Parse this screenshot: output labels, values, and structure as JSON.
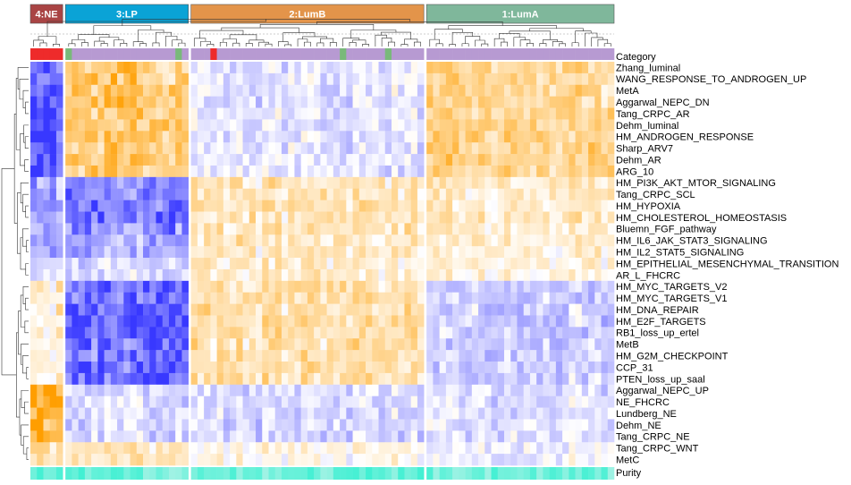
{
  "chart_data": {
    "type": "heatmap",
    "groups": [
      {
        "label": "4:NE",
        "color": "#a94444",
        "n": 5
      },
      {
        "label": "3:LP",
        "color": "#0aa3d6",
        "n": 19
      },
      {
        "label": "2:LumB",
        "color": "#e3944a",
        "n": 36
      },
      {
        "label": "1:LumA",
        "color": "#7fb79b",
        "n": 29
      }
    ],
    "category_label": "Category",
    "purity_label": "Purity",
    "category_colors": {
      "base": "#b79ad2",
      "ne": "#ee2b2b",
      "alt": "#79b97a",
      "gray": "#b0b0b0"
    },
    "purity_colors": {
      "low": "#a0f2e4",
      "high": "#3ef0d2"
    },
    "color_scale": {
      "low": "#3838ff",
      "mid": "#ffffff",
      "high": "#ff9e00"
    },
    "rows": [
      {
        "label": "Zhang_luminal",
        "pattern": [
          -0.9,
          0.6,
          -0.15,
          0.45
        ]
      },
      {
        "label": "WANG_RESPONSE_TO_ANDROGEN_UP",
        "pattern": [
          -0.9,
          0.6,
          -0.15,
          0.45
        ]
      },
      {
        "label": "MetA",
        "pattern": [
          -0.9,
          0.6,
          -0.15,
          0.45
        ]
      },
      {
        "label": "Aggarwal_NEPC_DN",
        "pattern": [
          -0.9,
          0.6,
          -0.15,
          0.45
        ]
      },
      {
        "label": "Tang_CRPC_AR",
        "pattern": [
          -0.9,
          0.6,
          -0.15,
          0.45
        ]
      },
      {
        "label": "Dehm_luminal",
        "pattern": [
          -0.9,
          0.6,
          -0.15,
          0.45
        ]
      },
      {
        "label": "HM_ANDROGEN_RESPONSE",
        "pattern": [
          -0.9,
          0.6,
          -0.15,
          0.45
        ]
      },
      {
        "label": "Sharp_ARV7",
        "pattern": [
          -0.9,
          0.6,
          -0.15,
          0.45
        ]
      },
      {
        "label": "Dehm_AR",
        "pattern": [
          -0.9,
          0.6,
          -0.15,
          0.45
        ]
      },
      {
        "label": "ARG_10",
        "pattern": [
          -0.9,
          0.6,
          -0.15,
          0.45
        ]
      },
      {
        "label": "HM_PI3K_AKT_MTOR_SIGNALING",
        "pattern": [
          -0.5,
          -0.7,
          0.3,
          0.2
        ]
      },
      {
        "label": "Tang_CRPC_SCL",
        "pattern": [
          -0.5,
          -0.7,
          0.3,
          0.2
        ]
      },
      {
        "label": "HM_HYPOXIA",
        "pattern": [
          -0.5,
          -0.7,
          0.3,
          0.2
        ]
      },
      {
        "label": "HM_CHOLESTEROL_HOMEOSTASIS",
        "pattern": [
          -0.5,
          -0.7,
          0.3,
          0.2
        ]
      },
      {
        "label": "Bluemn_FGF_pathway",
        "pattern": [
          -0.5,
          -0.7,
          0.3,
          0.2
        ]
      },
      {
        "label": "HM_IL6_JAK_STAT3_SIGNALING",
        "pattern": [
          -0.4,
          -0.5,
          0.25,
          0.15
        ]
      },
      {
        "label": "HM_IL2_STAT5_SIGNALING",
        "pattern": [
          -0.4,
          -0.5,
          0.25,
          0.15
        ]
      },
      {
        "label": "HM_EPITHELIAL_MESENCHYMAL_TRANSITION",
        "pattern": [
          -0.2,
          -0.2,
          0.2,
          0.1
        ]
      },
      {
        "label": "AR_L_FHCRC",
        "pattern": [
          -0.2,
          -0.2,
          0.2,
          0.1
        ]
      },
      {
        "label": "HM_MYC_TARGETS_V2",
        "pattern": [
          0.2,
          -0.85,
          0.35,
          -0.3
        ]
      },
      {
        "label": "HM_MYC_TARGETS_V1",
        "pattern": [
          0.2,
          -0.85,
          0.35,
          -0.3
        ]
      },
      {
        "label": "HM_DNA_REPAIR",
        "pattern": [
          0.2,
          -0.85,
          0.35,
          -0.3
        ]
      },
      {
        "label": "HM_E2F_TARGETS",
        "pattern": [
          0.2,
          -0.85,
          0.35,
          -0.3
        ]
      },
      {
        "label": "RB1_loss_up_ertel",
        "pattern": [
          0.2,
          -0.85,
          0.35,
          -0.3
        ]
      },
      {
        "label": "MetB",
        "pattern": [
          0.2,
          -0.85,
          0.35,
          -0.3
        ]
      },
      {
        "label": "HM_G2M_CHECKPOINT",
        "pattern": [
          0.2,
          -0.85,
          0.35,
          -0.3
        ]
      },
      {
        "label": "CCP_31",
        "pattern": [
          0.2,
          -0.85,
          0.35,
          -0.3
        ]
      },
      {
        "label": "PTEN_loss_up_saal",
        "pattern": [
          0.2,
          -0.85,
          0.35,
          -0.3
        ]
      },
      {
        "label": "Aggarwal_NEPC_UP",
        "pattern": [
          0.9,
          -0.2,
          -0.2,
          -0.2
        ]
      },
      {
        "label": "NE_FHCRC",
        "pattern": [
          0.9,
          -0.2,
          -0.2,
          -0.2
        ]
      },
      {
        "label": "Lundberg_NE",
        "pattern": [
          0.9,
          -0.2,
          -0.2,
          -0.2
        ]
      },
      {
        "label": "Dehm_NE",
        "pattern": [
          0.9,
          -0.2,
          -0.2,
          -0.2
        ]
      },
      {
        "label": "Tang_CRPC_NE",
        "pattern": [
          0.9,
          -0.2,
          -0.2,
          -0.2
        ]
      },
      {
        "label": "Tang_CRPC_WNT",
        "pattern": [
          0.5,
          0.3,
          0.1,
          -0.1
        ]
      },
      {
        "label": "MetC",
        "pattern": [
          0.5,
          0.3,
          0.1,
          -0.1
        ]
      }
    ]
  }
}
